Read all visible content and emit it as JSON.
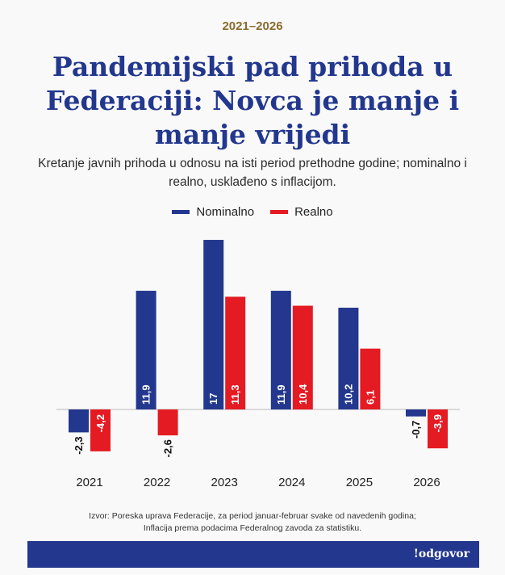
{
  "header": {
    "kicker": "2021–2026",
    "title": "Pandemijski pad prihoda u Federaciji: Novca je manje i manje vrijedi",
    "subtitle": "Kretanje javnih prihoda u odnosu na isti period prethodne godine; nominalno i realno, usklađeno s inflacijom."
  },
  "colors": {
    "nominal": "#22378d",
    "real": "#e41b23",
    "title": "#22378d",
    "kicker": "#8a6a2e"
  },
  "chart_data": {
    "type": "bar",
    "categories": [
      "2021",
      "2022",
      "2023",
      "2024",
      "2025",
      "2026"
    ],
    "series": [
      {
        "name": "Nominalno",
        "values": [
          -2.3,
          11.9,
          17,
          11.9,
          10.2,
          -0.7
        ],
        "labels": [
          "-2,3",
          "11,9",
          "17",
          "11,9",
          "10,2",
          "-0,7"
        ]
      },
      {
        "name": "Realno",
        "values": [
          -4.2,
          -2.6,
          11.3,
          10.4,
          6.1,
          -3.9
        ],
        "labels": [
          "-4,2",
          "-2,6",
          "11,3",
          "10,4",
          "6,1",
          "-3,9"
        ]
      }
    ],
    "legend_position": "top-center",
    "grid": false,
    "ylim": [
      -5,
      17.5
    ]
  },
  "footer": {
    "source_line1": "Izvor: Poreska uprava Federacije, za period januar-februar svake od navedenih godina;",
    "source_line2": "Inflacija prema podacima Federalnog zavoda za statistiku.",
    "brand": "!odgovor"
  }
}
